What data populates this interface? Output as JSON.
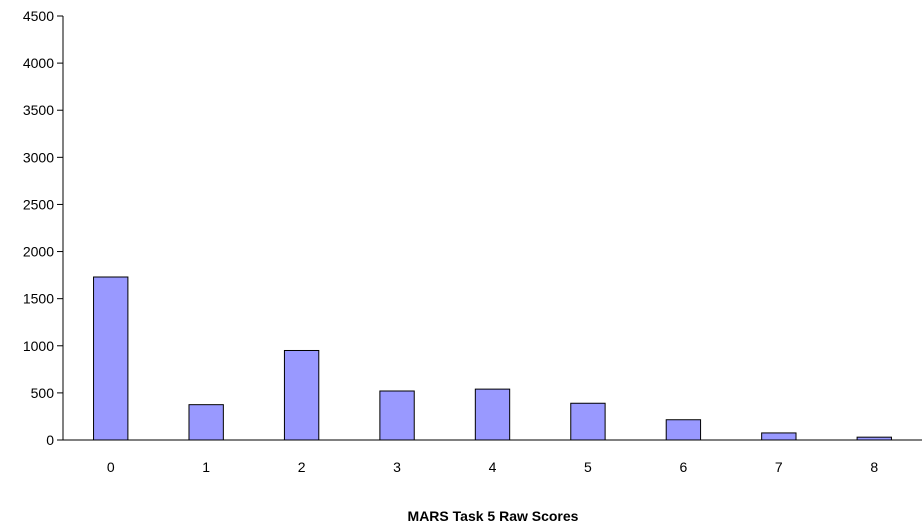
{
  "chart_data": {
    "type": "bar",
    "title": "",
    "xlabel": "MARS Task 5 Raw Scores",
    "ylabel": "",
    "categories": [
      "0",
      "1",
      "2",
      "3",
      "4",
      "5",
      "6",
      "7",
      "8"
    ],
    "values": [
      1730,
      375,
      950,
      520,
      540,
      390,
      215,
      75,
      30
    ],
    "ylim": [
      0,
      4500
    ],
    "yticks": [
      0,
      500,
      1000,
      1500,
      2000,
      2500,
      3000,
      3500,
      4000,
      4500
    ],
    "grid": false,
    "legend": "none",
    "colors": {
      "bar_fill": "#9999ff",
      "bar_stroke": "#000000",
      "axis": "#000000",
      "background": "#ffffff"
    }
  }
}
